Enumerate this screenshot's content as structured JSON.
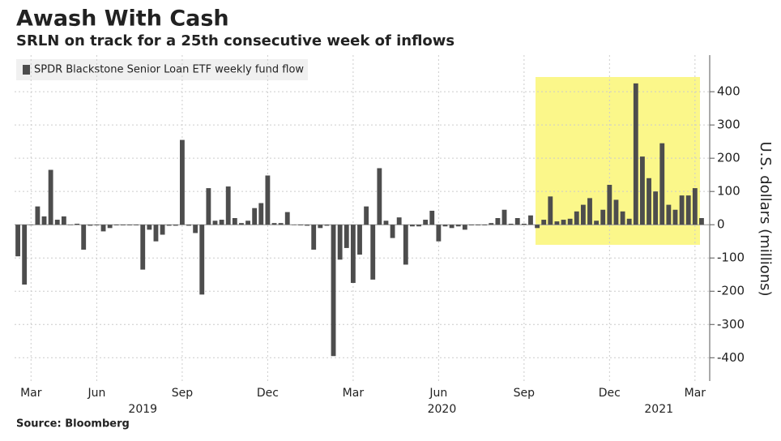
{
  "chart_data": {
    "type": "bar",
    "title": "Awash With Cash",
    "subtitle": "SRLN on track for a 25th consecutive week of inflows",
    "legend": "SPDR Blackstone Senior Loan ETF weekly fund flow",
    "y_axis_label": "U.S. dollars (millions)",
    "source": "Source: Bloomberg",
    "color": "#4d4d4d",
    "categories": [
      null,
      null,
      "Mar",
      null,
      null,
      null,
      null,
      null,
      null,
      null,
      null,
      null,
      "Jun",
      null,
      null,
      null,
      null,
      null,
      null,
      null,
      null,
      null,
      null,
      null,
      null,
      "Sep",
      null,
      null,
      null,
      null,
      null,
      null,
      null,
      null,
      null,
      null,
      null,
      null,
      "Dec",
      null,
      null,
      null,
      null,
      null,
      null,
      null,
      null,
      null,
      null,
      null,
      null,
      "Mar",
      null,
      null,
      null,
      null,
      null,
      null,
      null,
      null,
      null,
      null,
      null,
      null,
      "Jun",
      null,
      null,
      null,
      null,
      null,
      null,
      null,
      null,
      null,
      null,
      null,
      null,
      "Sep",
      null,
      null,
      null,
      null,
      null,
      null,
      null,
      null,
      null,
      null,
      null,
      null,
      "Dec",
      null,
      null,
      null,
      null,
      null,
      null,
      null,
      null,
      null,
      null,
      null,
      null,
      "Mar",
      null
    ],
    "year_labels": [
      "2019",
      "2020",
      "2021"
    ],
    "values": [
      -95,
      -180,
      0,
      55,
      25,
      165,
      15,
      25,
      0,
      3,
      -75,
      -3,
      -2,
      -20,
      -10,
      -2,
      -2,
      -2,
      -2,
      -135,
      -15,
      -50,
      -30,
      -3,
      -3,
      255,
      -3,
      -25,
      -210,
      110,
      12,
      15,
      115,
      20,
      5,
      12,
      50,
      65,
      148,
      5,
      5,
      38,
      0,
      -2,
      -3,
      -75,
      -10,
      -3,
      -395,
      -105,
      -70,
      -175,
      -90,
      55,
      -165,
      170,
      12,
      -40,
      22,
      -120,
      -5,
      -5,
      15,
      42,
      -50,
      -5,
      -10,
      -5,
      -15,
      -2,
      -2,
      -2,
      5,
      20,
      45,
      3,
      20,
      3,
      28,
      -10,
      15,
      85,
      10,
      15,
      18,
      40,
      60,
      80,
      12,
      45,
      120,
      75,
      40,
      18,
      425,
      205,
      140,
      100,
      245,
      60,
      45,
      88,
      88,
      110,
      20
    ],
    "ylim": [
      -470,
      510
    ],
    "yticks": [
      -400,
      -300,
      -200,
      -100,
      0,
      100,
      200,
      300,
      400
    ],
    "grid": true
  }
}
